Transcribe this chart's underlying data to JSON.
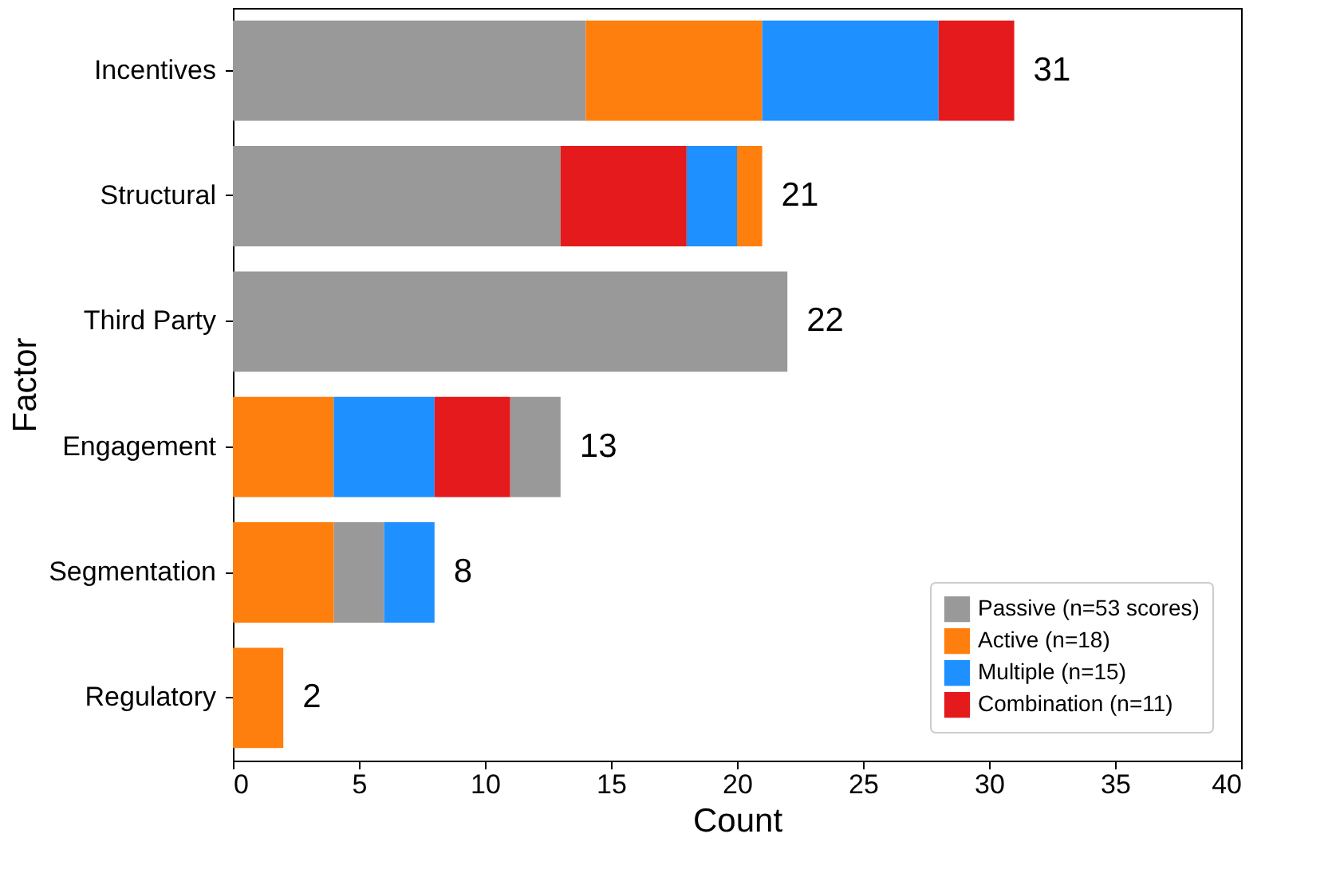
{
  "chart_data": {
    "type": "bar",
    "orientation": "horizontal",
    "xlabel": "Count",
    "ylabel": "Factor",
    "categories": [
      "Incentives",
      "Structural",
      "Third Party",
      "Engagement",
      "Segmentation",
      "Regulatory"
    ],
    "series": [
      {
        "name": "Passive (n=53 scores)",
        "color": "#999999",
        "values": [
          14,
          13,
          22,
          2,
          2,
          null
        ],
        "base": [
          0,
          0,
          0,
          11,
          4,
          null
        ]
      },
      {
        "name": "Active (n=18)",
        "color": "#ff7f0e",
        "values": [
          7,
          1,
          null,
          4,
          4,
          2
        ],
        "base": [
          14,
          20,
          null,
          0,
          0,
          0
        ]
      },
      {
        "name": "Multiple (n=15)",
        "color": "#1e90ff",
        "values": [
          7,
          2,
          null,
          4,
          2,
          null
        ],
        "base": [
          21,
          18,
          null,
          4,
          6,
          null
        ]
      },
      {
        "name": "Combination (n=11)",
        "color": "#e41a1c",
        "values": [
          3,
          5,
          null,
          3,
          null,
          null
        ],
        "base": [
          28,
          13,
          null,
          8,
          null,
          null
        ]
      }
    ],
    "totals": [
      "31",
      "21",
      "22",
      "13",
      "8",
      "2"
    ],
    "xlim": [
      0,
      40
    ],
    "xticks": [
      0,
      5,
      10,
      15,
      20,
      25,
      30,
      35,
      40
    ],
    "grid": false,
    "legend": "bottom right"
  }
}
